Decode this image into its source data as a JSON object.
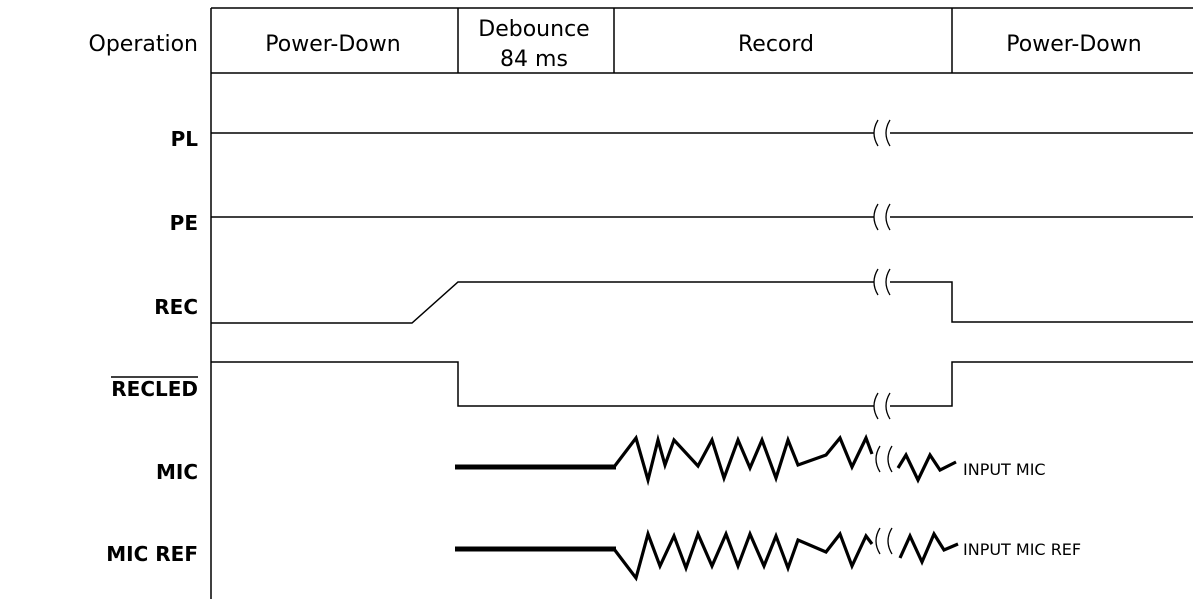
{
  "header": {
    "operation_label": "Operation",
    "phases": [
      "Power-Down",
      "Debounce",
      "84 ms",
      "Record",
      "Power-Down"
    ]
  },
  "signals": [
    "PL",
    "PE",
    "REC",
    "RECLED",
    "MIC",
    "MIC REF"
  ],
  "annotations": {
    "mic": "INPUT MIC",
    "mic_ref": "INPUT MIC REF"
  }
}
